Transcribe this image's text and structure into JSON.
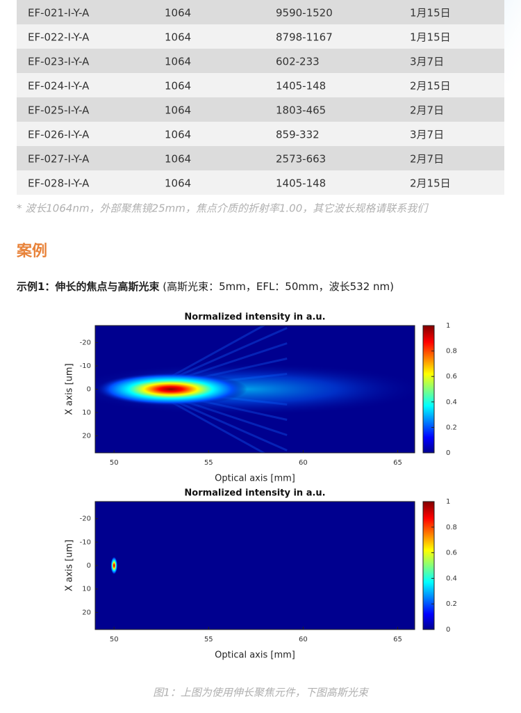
{
  "table": {
    "rows": [
      [
        "EF-021-I-Y-A",
        "1064",
        "9590-1520",
        "1月15日"
      ],
      [
        "EF-022-I-Y-A",
        "1064",
        "8798-1167",
        "1月15日"
      ],
      [
        "EF-023-I-Y-A",
        "1064",
        "602-233",
        "3月7日"
      ],
      [
        "EF-024-I-Y-A",
        "1064",
        "1405-148",
        "2月15日"
      ],
      [
        "EF-025-I-Y-A",
        "1064",
        "1803-465",
        "2月7日"
      ],
      [
        "EF-026-I-Y-A",
        "1064",
        "859-332",
        "3月7日"
      ],
      [
        "EF-027-I-Y-A",
        "1064",
        "2573-663",
        "2月7日"
      ],
      [
        "EF-028-I-Y-A",
        "1064",
        "1405-148",
        "2月15日"
      ]
    ]
  },
  "note": "* 波长1064nm，外部聚焦镜25mm，焦点介质的折射率1.00，其它波长规格请联系我们",
  "section_title": "案例",
  "example": {
    "label": "示例1：伸长的焦点与高斯光束",
    "detail": " (高斯光束：5mm，EFL：50mm，波长532 nm)"
  },
  "figures": [
    {
      "title": "Normalized intensity in a.u.",
      "xlabel": "Optical axis [mm]",
      "ylabel": "X axis [um]",
      "xlim": [
        49,
        65.9
      ],
      "xticks": [
        50,
        55,
        60,
        65
      ],
      "ylim": [
        -27.3,
        27.3
      ],
      "yticks": [
        -20,
        -10,
        0,
        10,
        20
      ],
      "colorbar_lim": [
        0,
        1
      ],
      "colorbar_ticks": [
        0,
        0.2,
        0.4,
        0.6,
        0.8,
        1
      ]
    },
    {
      "title": "Normalized intensity in a.u.",
      "xlabel": "Optical axis [mm]",
      "ylabel": "X axis [um]",
      "xlim": [
        49,
        65.9
      ],
      "xticks": [
        50,
        55,
        60,
        65
      ],
      "ylim": [
        -27.3,
        27.3
      ],
      "yticks": [
        -20,
        -10,
        0,
        10,
        20
      ],
      "colorbar_lim": [
        0,
        1
      ],
      "colorbar_ticks": [
        0,
        0.2,
        0.4,
        0.6,
        0.8,
        1
      ]
    }
  ],
  "caption": "图1：上图为使用伸长聚焦元件，下图高斯光束"
}
